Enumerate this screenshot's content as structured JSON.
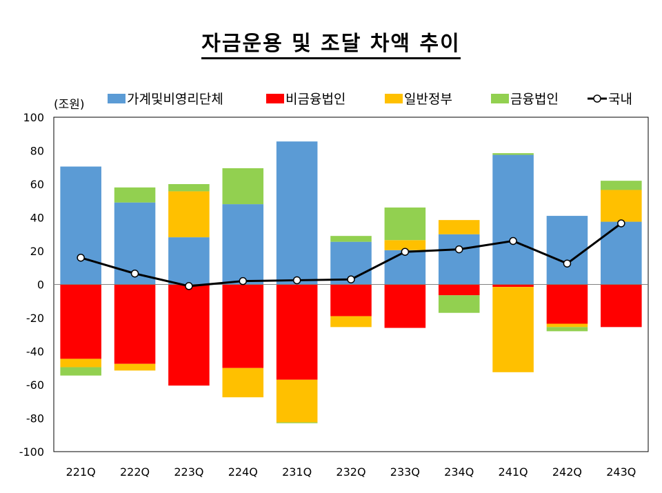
{
  "chart_data": {
    "type": "bar",
    "title": "자금운용 및 조달 차액 추이",
    "unit_label": "(조원)",
    "ylim": [
      -100,
      100
    ],
    "yticks": [
      100,
      80,
      60,
      40,
      20,
      0,
      -20,
      -40,
      -60,
      -80,
      -100
    ],
    "categories": [
      "221Q",
      "222Q",
      "223Q",
      "224Q",
      "231Q",
      "232Q",
      "233Q",
      "234Q",
      "241Q",
      "242Q",
      "243Q"
    ],
    "series": [
      {
        "name": "가계및비영리단체",
        "color": "#5B9BD5",
        "values": [
          70.5,
          49,
          28.2,
          48,
          85.5,
          25.5,
          20.5,
          30,
          77.5,
          41,
          37.5
        ]
      },
      {
        "name": "비금융법인",
        "color": "#FF0000",
        "values": [
          -44.5,
          -47.5,
          -60.5,
          -50,
          -57,
          -19,
          -26,
          -6.5,
          -1.5,
          -23.5,
          -25.5
        ]
      },
      {
        "name": "일반정부",
        "color": "#FFC000",
        "values": [
          -5,
          -4,
          27.5,
          -17.5,
          -25.5,
          -6.5,
          6,
          8.5,
          -51,
          -2,
          19
        ]
      },
      {
        "name": "금융법인",
        "color": "#92D050",
        "values": [
          -5,
          9,
          4.3,
          21.5,
          -0.5,
          3.5,
          19.5,
          -10.5,
          1,
          -2.5,
          5.5
        ]
      }
    ],
    "line": {
      "name": "국내",
      "values": [
        16,
        6.5,
        -1,
        2,
        2.5,
        3,
        19.5,
        21,
        26,
        12.5,
        36.5
      ]
    },
    "legend_position": "top",
    "grid": false
  }
}
